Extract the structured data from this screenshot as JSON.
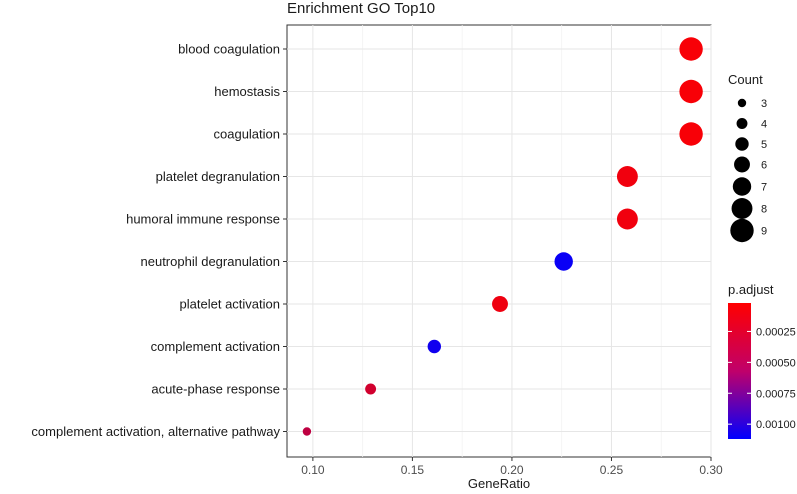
{
  "chart_data": {
    "type": "scatter",
    "title": "Enrichment GO Top10",
    "xlabel": "GeneRatio",
    "ylabel": "",
    "xlim": [
      0.087,
      0.3
    ],
    "xticks": [
      0.1,
      0.15,
      0.2,
      0.25,
      0.3
    ],
    "xtick_labels": [
      "0.10",
      "0.15",
      "0.20",
      "0.25",
      "0.30"
    ],
    "grid": true,
    "terms": [
      {
        "label": "blood coagulation",
        "gene_ratio": 0.29,
        "count": 9,
        "p_adjust": 5e-05
      },
      {
        "label": "hemostasis",
        "gene_ratio": 0.29,
        "count": 9,
        "p_adjust": 5e-05
      },
      {
        "label": "coagulation",
        "gene_ratio": 0.29,
        "count": 9,
        "p_adjust": 5e-05
      },
      {
        "label": "platelet degranulation",
        "gene_ratio": 0.258,
        "count": 8,
        "p_adjust": 8e-05
      },
      {
        "label": "humoral immune response",
        "gene_ratio": 0.258,
        "count": 8,
        "p_adjust": 8e-05
      },
      {
        "label": "neutrophil degranulation",
        "gene_ratio": 0.226,
        "count": 7,
        "p_adjust": 0.00108
      },
      {
        "label": "platelet activation",
        "gene_ratio": 0.194,
        "count": 6,
        "p_adjust": 9e-05
      },
      {
        "label": "complement activation",
        "gene_ratio": 0.161,
        "count": 5,
        "p_adjust": 0.00105
      },
      {
        "label": "acute-phase response",
        "gene_ratio": 0.129,
        "count": 4,
        "p_adjust": 0.00022
      },
      {
        "label": "complement activation, alternative pathway",
        "gene_ratio": 0.097,
        "count": 3,
        "p_adjust": 0.0003
      }
    ],
    "legend_size": {
      "title": "Count",
      "values": [
        3,
        4,
        5,
        6,
        7,
        8,
        9
      ],
      "labels": [
        "3",
        "4",
        "5",
        "6",
        "7",
        "8",
        "9"
      ]
    },
    "legend_color": {
      "title": "p.adjust",
      "range": [
        2e-05,
        0.00112
      ],
      "ticks": [
        0.00025,
        0.0005,
        0.00075,
        0.001
      ],
      "tick_labels": [
        "0.00025",
        "0.00050",
        "0.00075",
        "0.00100"
      ],
      "low_color": "#ff0000",
      "high_color": "#0000ff"
    },
    "legend_placement": "right"
  }
}
